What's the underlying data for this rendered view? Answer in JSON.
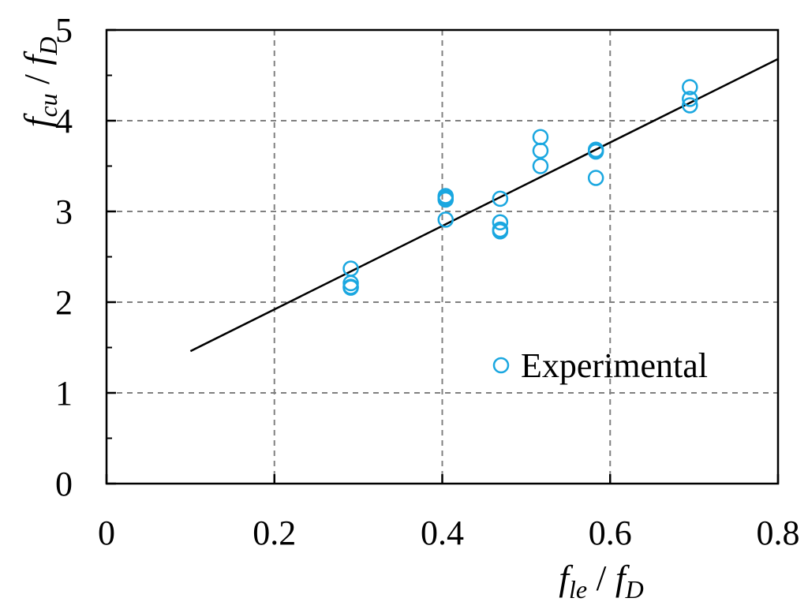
{
  "chart_data": {
    "type": "scatter",
    "xlim": [
      0,
      0.8
    ],
    "ylim": [
      0,
      5
    ],
    "x_ticks": [
      "0",
      "0.2",
      "0.4",
      "0.6",
      "0.8"
    ],
    "y_ticks": [
      "0",
      "1",
      "2",
      "3",
      "4",
      "5"
    ],
    "x_tick_values": [
      0,
      0.2,
      0.4,
      0.6,
      0.8
    ],
    "y_tick_values": [
      0,
      1,
      2,
      3,
      4,
      5
    ],
    "y_minor_tick_values": [
      0.5,
      1.5,
      2.5,
      3.5,
      4.5
    ],
    "xlabel": {
      "main1": "f",
      "sub1": "le",
      "sep": " / ",
      "main2": "f",
      "sub2": "D"
    },
    "ylabel": {
      "main1": "f",
      "sub1": "cu",
      "sep": " / ",
      "main2": "f",
      "sub2": "D"
    },
    "grid": true,
    "legend_position": "lower-right",
    "series": [
      {
        "name": "Experimental",
        "type": "scatter",
        "marker": "open-circle",
        "color": "#1aa7e0",
        "x": [
          0.291,
          0.291,
          0.291,
          0.291,
          0.404,
          0.404,
          0.404,
          0.404,
          0.469,
          0.469,
          0.469,
          0.469,
          0.517,
          0.517,
          0.517,
          0.583,
          0.583,
          0.583,
          0.695,
          0.695,
          0.695
        ],
        "y": [
          2.37,
          2.21,
          2.17,
          2.16,
          3.17,
          3.15,
          3.13,
          2.91,
          3.14,
          2.88,
          2.8,
          2.78,
          3.82,
          3.67,
          3.5,
          3.68,
          3.66,
          3.37,
          4.37,
          4.24,
          4.17
        ]
      },
      {
        "type": "line",
        "color": "#000000",
        "x": [
          0.1,
          0.8
        ],
        "y": [
          1.46,
          4.68
        ]
      }
    ]
  }
}
